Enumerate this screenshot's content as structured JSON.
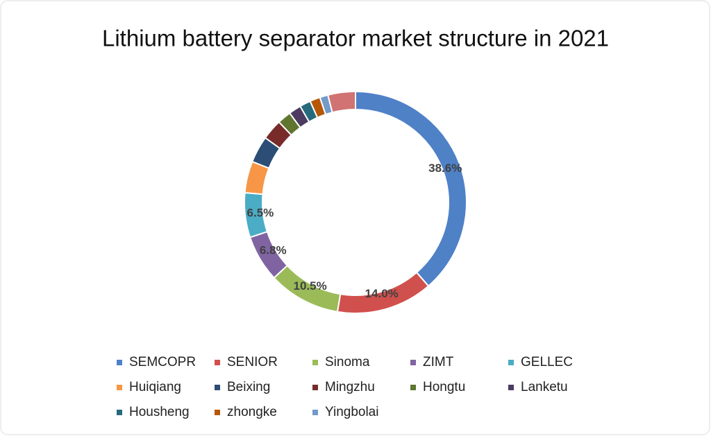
{
  "chart_data": {
    "type": "donut",
    "title": "Lithium battery separator market structure in 2021",
    "categories": [
      "SEMCOPR",
      "SENIOR",
      "Sinoma",
      "ZIMT",
      "GELLEC",
      "Huiqiang",
      "Beixing",
      "Mingzhu",
      "Hongtu",
      "Lanketu",
      "Housheng",
      "zhongke",
      "Yingbolai",
      null
    ],
    "values": [
      38.6,
      14.0,
      10.5,
      6.8,
      6.5,
      4.6,
      3.9,
      3.0,
      2.0,
      1.8,
      1.6,
      1.5,
      1.2,
      4.0
    ],
    "value_labels": [
      "38.6%",
      "14.0%",
      "10.5%",
      "6.8%",
      "6.5%",
      null,
      null,
      null,
      null,
      null,
      null,
      null,
      null,
      null
    ],
    "colors": [
      "#4f81c7",
      "#d0504d",
      "#9bbb59",
      "#8064a2",
      "#4bacc6",
      "#f79646",
      "#2c4d75",
      "#772c2a",
      "#5f7530",
      "#4d3b62",
      "#276a7c",
      "#b65708",
      "#729aca",
      "#d07372"
    ],
    "legend": "bottom"
  }
}
